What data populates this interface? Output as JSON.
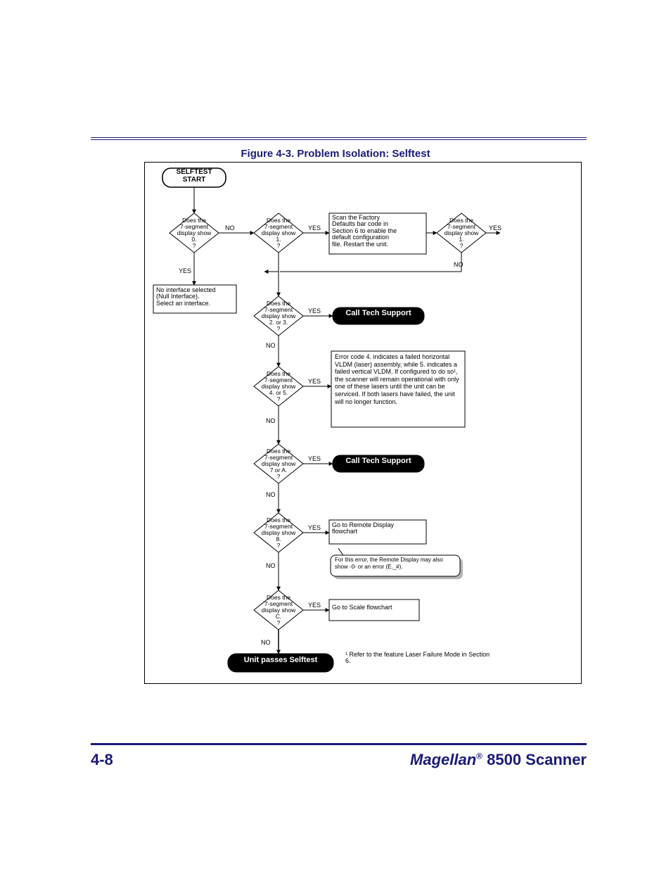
{
  "page": {
    "number": "4-8",
    "footer_brand": "Magellan",
    "footer_reg": "®",
    "footer_model": "8500 Scanner"
  },
  "figure_title": "Figure 4-3. Problem Isolation: Selftest",
  "flow": {
    "type": "flowchart",
    "background_color": "#ffffff",
    "border_color": "#000000",
    "line_color": "#000000",
    "line_width": 1,
    "arrow_size": 5,
    "label_fontsize": 9,
    "node_fontsize": 9,
    "nodes": {
      "start": {
        "type": "terminator",
        "text": "SELFTEST\nSTART",
        "bold": true,
        "fill": "#ffffff",
        "text_color": "#000000"
      },
      "d0": {
        "type": "decision",
        "text": "Does the\n7-segment\ndisplay show\n0.\n?",
        "fill": "#ffffff"
      },
      "d1": {
        "type": "decision",
        "text": "Does the\n7-segment\ndisplay show\n1.\n?",
        "fill": "#ffffff"
      },
      "factory": {
        "type": "process",
        "text": "Scan the Factory\nDefaults bar code in\nSection 6 to enable the\ndefault configuration\nfile. Restart the unit.",
        "fill": "#ffffff"
      },
      "d1b": {
        "type": "decision",
        "text": "Does the\n7-segment\ndisplay show\n1.\n?",
        "fill": "#ffffff"
      },
      "nullif": {
        "type": "process",
        "text": "No interface selected\n(Null Interface).\nSelect an interface.",
        "fill": "#ffffff"
      },
      "d23": {
        "type": "decision",
        "text": "Does the\n7-segment\ndisplay show\n2. or 3.\n?",
        "fill": "#ffffff"
      },
      "cts1": {
        "type": "terminator",
        "text": "Call Tech Support",
        "bold": true,
        "fill": "#000000",
        "text_color": "#ffffff"
      },
      "d45": {
        "type": "decision",
        "text": "Does the\n7-segment\ndisplay show\n4. or 5.\n?",
        "fill": "#ffffff"
      },
      "err45": {
        "type": "process",
        "text": "Error code 4. indicates a failed horizontal VLDM (laser) assembly, while 5. indicates a failed vertical VLDM. If configured to do so¹, the scanner will remain operational with only one of these lasers until the unit can be serviced. If both lasers have failed, the unit will no longer function.",
        "fill": "#ffffff"
      },
      "d7A": {
        "type": "decision",
        "text": "Does the\n7-segment\ndisplay show\n7 or A.\n?",
        "fill": "#ffffff"
      },
      "cts2": {
        "type": "terminator",
        "text": "Call Tech Support",
        "bold": true,
        "fill": "#000000",
        "text_color": "#ffffff"
      },
      "d8": {
        "type": "decision",
        "text": "Does the\n7-segment\ndisplay show\n8.\n?",
        "fill": "#ffffff"
      },
      "remote": {
        "type": "process",
        "text": "Go to Remote Display\nflowchart",
        "fill": "#ffffff"
      },
      "remnote": {
        "type": "callout",
        "text": "For this error, the Remote Display may also show -0- or an error (E._#).",
        "fill": "#ffffff",
        "shadow": "#b5b5b5"
      },
      "dC": {
        "type": "decision",
        "text": "Does the\n7-segment\ndisplay show\nC.\n?",
        "fill": "#ffffff"
      },
      "scale": {
        "type": "process",
        "text": "Go to Scale flowchart",
        "fill": "#ffffff"
      },
      "pass": {
        "type": "terminator",
        "text": "Unit passes Selftest",
        "bold": true,
        "fill": "#000000",
        "text_color": "#ffffff"
      },
      "footnote": {
        "type": "text",
        "text": "¹ Refer to the feature Laser Failure Mode in Section 6."
      }
    },
    "labels": {
      "yes": "YES",
      "no": "NO"
    }
  }
}
